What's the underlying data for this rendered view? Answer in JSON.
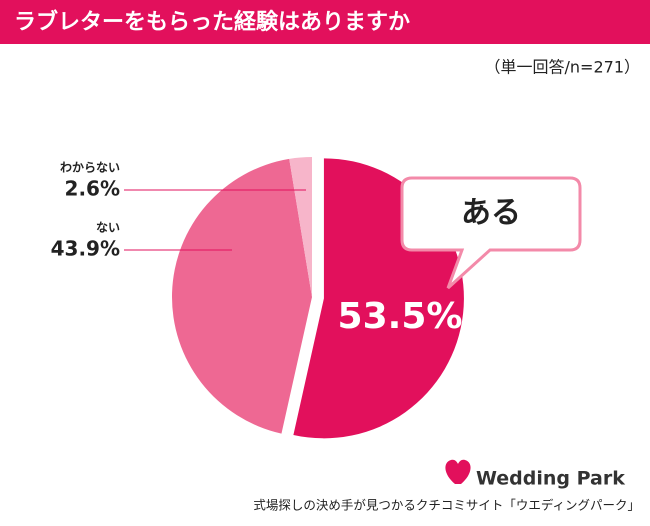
{
  "chart_data": {
    "type": "pie",
    "title": "ラブレターをもらった経験はありますか",
    "subtitle": "（単一回答/n=271）",
    "categories": [
      "ある",
      "ない",
      "わからない"
    ],
    "values": [
      53.5,
      43.9,
      2.6
    ],
    "value_labels": [
      "53.5%",
      "43.9%",
      "2.6%"
    ],
    "colors": [
      "#e2105c",
      "#ee6893",
      "#f7b5ca"
    ]
  },
  "footer": {
    "brand": "Wedding Park",
    "tagline": "式場探しの決め手が見つかるクチコミサイト「ウエディングパーク」"
  }
}
